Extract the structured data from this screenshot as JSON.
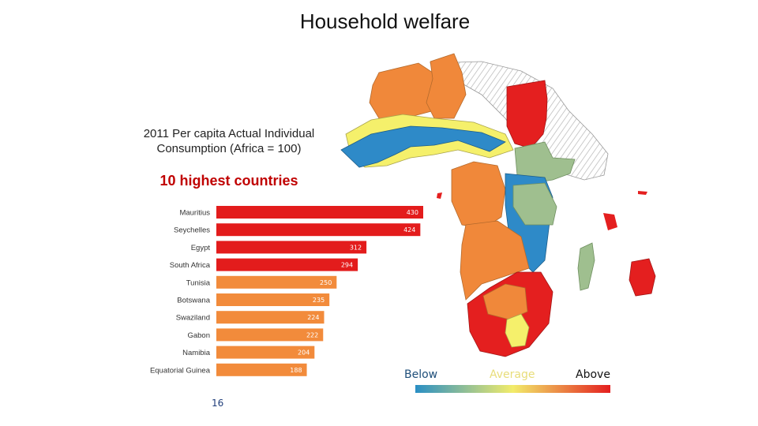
{
  "title": "Household welfare",
  "subtitle": "2011 Per capita Actual Individual Consumption (Africa = 100)",
  "heading": "10 highest countries",
  "legend": {
    "below": "Below",
    "average": "Average",
    "above": "Above",
    "colors": {
      "below": "#2a8fc4",
      "average": "#f2ec6a",
      "above": "#e41f1f"
    },
    "label_colors": {
      "below": "#1f4f7a",
      "average": "#e8dd7a",
      "above": "#111111"
    }
  },
  "page_number": "16",
  "colors": {
    "red": "#e31c1c",
    "orange": "#f0883a",
    "yellow": "#f5f06b",
    "green": "#9fbf8f",
    "blue": "#2e8ac8",
    "grey_hatch": "#d8d8d8"
  },
  "chart_data": {
    "type": "bar",
    "orientation": "horizontal",
    "categories": [
      "Mauritius",
      "Seychelles",
      "Egypt",
      "South Africa",
      "Tunisia",
      "Botswana",
      "Swaziland",
      "Gabon",
      "Namibia",
      "Equatorial Guinea"
    ],
    "values": [
      430,
      424,
      312,
      294,
      250,
      235,
      224,
      222,
      204,
      188
    ],
    "value_labels": [
      "430",
      "424",
      "312",
      "294",
      "250",
      "235",
      "224",
      "222",
      "204",
      "188"
    ],
    "bar_colors": [
      "#e31c1c",
      "#e31c1c",
      "#e31c1c",
      "#e31c1c",
      "#f28b3b",
      "#f28b3b",
      "#f28b3b",
      "#f28b3b",
      "#f28b3b",
      "#f28b3b"
    ],
    "xlim": [
      0,
      430
    ]
  }
}
